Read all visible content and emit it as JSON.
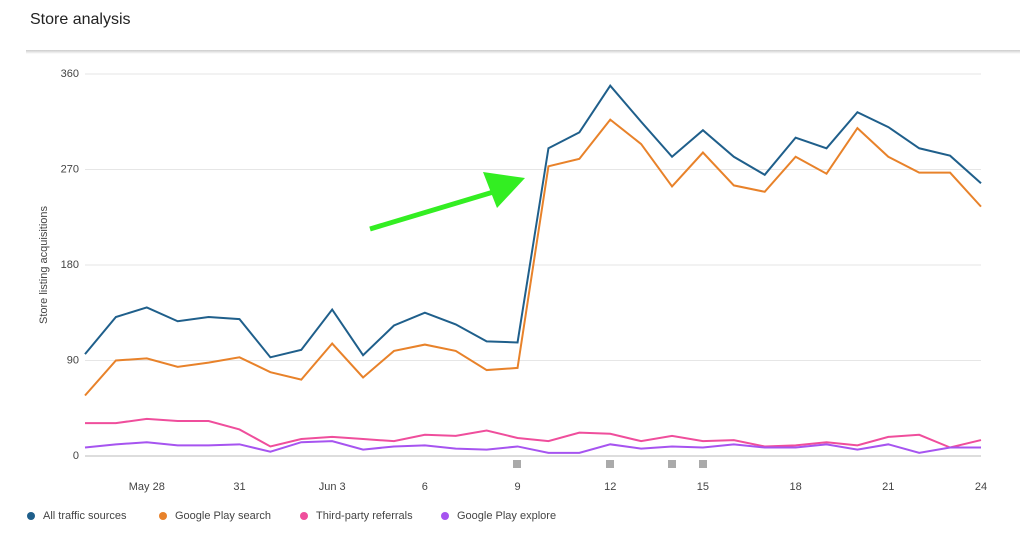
{
  "chart_data": {
    "type": "line",
    "title": "Store analysis",
    "y_label": "Store listing acquisitions",
    "categories": [
      null,
      null,
      "May 28",
      null,
      null,
      "31",
      null,
      null,
      "Jun 3",
      null,
      null,
      "6",
      null,
      null,
      "9",
      null,
      null,
      "12",
      null,
      null,
      "15",
      null,
      null,
      "18",
      null,
      null,
      "21",
      null,
      null,
      "24"
    ],
    "series": [
      {
        "name": "All traffic sources",
        "color": "#1f5f8b",
        "values": [
          96,
          131,
          140,
          127,
          131,
          129,
          93,
          100,
          138,
          95,
          123,
          135,
          124,
          108,
          107,
          290,
          305,
          349,
          315,
          282,
          307,
          282,
          265,
          300,
          290,
          324,
          310,
          290,
          283,
          257
        ]
      },
      {
        "name": "Google Play search",
        "color": "#e8822a",
        "values": [
          57,
          90,
          92,
          84,
          88,
          93,
          79,
          72,
          106,
          74,
          99,
          105,
          99,
          81,
          83,
          273,
          280,
          317,
          294,
          254,
          286,
          255,
          249,
          282,
          266,
          309,
          282,
          267,
          267,
          235
        ]
      },
      {
        "name": "Third-party referrals",
        "color": "#ef4e9c",
        "values": [
          31,
          31,
          35,
          33,
          33,
          25,
          9,
          16,
          18,
          16,
          14,
          20,
          19,
          24,
          17,
          14,
          22,
          21,
          14,
          19,
          14,
          15,
          9,
          10,
          13,
          10,
          18,
          20,
          8,
          15
        ]
      },
      {
        "name": "Google Play explore",
        "color": "#a654f0",
        "values": [
          8,
          11,
          13,
          10,
          10,
          11,
          4,
          13,
          14,
          6,
          9,
          10,
          7,
          6,
          9,
          3,
          3,
          11,
          7,
          9,
          8,
          11,
          8,
          8,
          11,
          6,
          11,
          3,
          8,
          8
        ]
      }
    ],
    "ylim": [
      0,
      360
    ],
    "yticks": [
      0,
      90,
      180,
      270,
      360
    ],
    "grid": true,
    "legend": "bottom"
  }
}
